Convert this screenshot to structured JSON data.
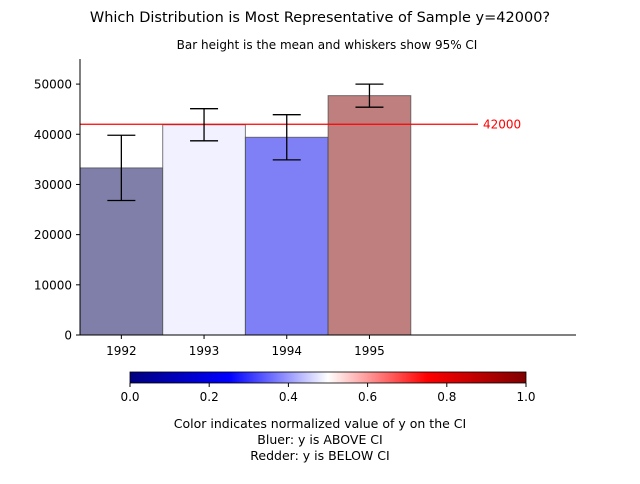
{
  "chart_data": {
    "type": "bar",
    "title": "Which Distribution is Most Representative of Sample y=42000?",
    "subtitle": "Bar height is the mean and whiskers show 95% CI",
    "categories": [
      "1992",
      "1993",
      "1994",
      "1995"
    ],
    "values": [
      33300,
      41900,
      39400,
      47700
    ],
    "ci_low": [
      26800,
      38700,
      34900,
      45400
    ],
    "ci_high": [
      39800,
      45100,
      43900,
      50000
    ],
    "bar_colors": [
      "#7f7fa9",
      "#f1f1ff",
      "#7f7ff6",
      "#bf7f7f"
    ],
    "reference_line": {
      "value": 42000,
      "label": "42000",
      "color": "#ff0000"
    },
    "ylim": [
      0,
      55000
    ],
    "yticks": [
      0,
      10000,
      20000,
      30000,
      40000,
      50000
    ],
    "xlabel": "",
    "ylabel": "",
    "grid": false,
    "colorbar": {
      "ticks": [
        "0.0",
        "0.2",
        "0.4",
        "0.6",
        "0.8",
        "1.0"
      ],
      "stops": [
        "#00007f",
        "#0000ff",
        "#ffffff",
        "#ff0000",
        "#7f0000"
      ],
      "caption_lines": [
        "Color indicates normalized value of y on the CI",
        "Bluer: y is ABOVE CI",
        "Redder: y is BELOW CI"
      ]
    }
  }
}
